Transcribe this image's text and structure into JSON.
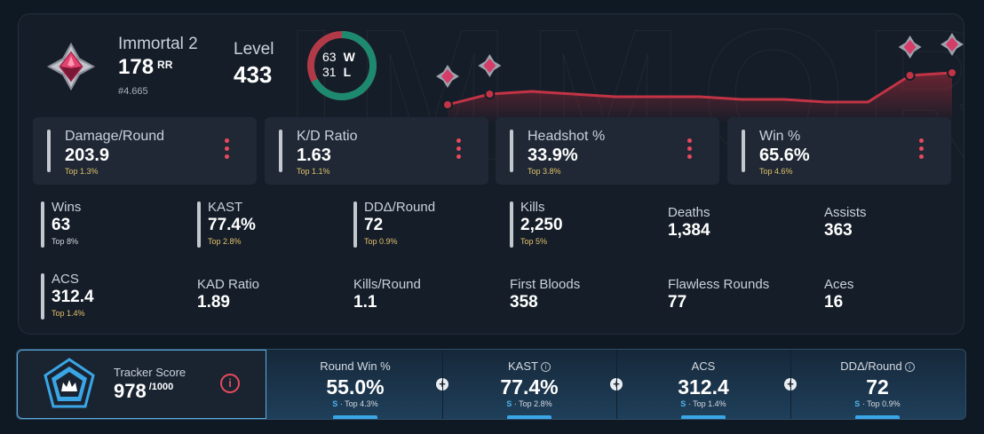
{
  "profile": {
    "rank_name": "Immortal 2",
    "rr_value": "178",
    "rr_unit": "RR",
    "rank_position": "#4.665",
    "level_label": "Level",
    "level_value": "433"
  },
  "record": {
    "wins": "63",
    "wins_label": "W",
    "losses": "31",
    "losses_label": "L",
    "win_color": "#1d8a6f",
    "loss_color": "#b23a48"
  },
  "rr_trend": {
    "values": [
      60,
      64,
      65,
      64,
      63,
      63,
      63,
      62,
      62,
      61,
      61,
      71,
      72
    ]
  },
  "featured_stats": [
    {
      "label": "Damage/Round",
      "value": "203.9",
      "percentile": "Top 1.3%"
    },
    {
      "label": "K/D Ratio",
      "value": "1.63",
      "percentile": "Top 1.1%"
    },
    {
      "label": "Headshot %",
      "value": "33.9%",
      "percentile": "Top 3.8%"
    },
    {
      "label": "Win %",
      "value": "65.6%",
      "percentile": "Top 4.6%"
    }
  ],
  "stats": [
    {
      "label": "Wins",
      "value": "63",
      "percentile": "Top 8%"
    },
    {
      "label": "KAST",
      "value": "77.4%",
      "percentile": "Top 2.8%"
    },
    {
      "label": "DDΔ/Round",
      "value": "72",
      "percentile": "Top 0.9%"
    },
    {
      "label": "Kills",
      "value": "2,250",
      "percentile": "Top 5%"
    },
    {
      "label": "Deaths",
      "value": "1,384"
    },
    {
      "label": "Assists",
      "value": "363"
    },
    {
      "label": "ACS",
      "value": "312.4",
      "percentile": "Top 1.4%"
    },
    {
      "label": "KAD Ratio",
      "value": "1.89"
    },
    {
      "label": "Kills/Round",
      "value": "1.1"
    },
    {
      "label": "First Bloods",
      "value": "358"
    },
    {
      "label": "Flawless Rounds",
      "value": "77"
    },
    {
      "label": "Aces",
      "value": "16"
    }
  ],
  "tracker": {
    "label": "Tracker Score",
    "score": "978",
    "max": "/1000",
    "info_symbol": "i",
    "cells": [
      {
        "label": "Round Win %",
        "value": "55.0%",
        "grade": "S",
        "percentile": "· Top 4.3%"
      },
      {
        "label": "KAST",
        "value": "77.4%",
        "grade": "S",
        "percentile": "· Top 2.8%",
        "info": "i"
      },
      {
        "label": "ACS",
        "value": "312.4",
        "grade": "S",
        "percentile": "· Top 1.4%"
      },
      {
        "label": "DDΔ/Round",
        "value": "72",
        "grade": "S",
        "percentile": "· Top 0.9%",
        "info": "i"
      }
    ],
    "plus_symbol": "+"
  },
  "icons": {
    "rank": "immortal-rank-icon",
    "tracker": "tracker-logo-icon",
    "kebab": "kebab-menu-icon"
  },
  "colors": {
    "accent_red": "#e8495a",
    "accent_blue": "#3aa6e6",
    "percentile_gold": "#e2c06b"
  }
}
